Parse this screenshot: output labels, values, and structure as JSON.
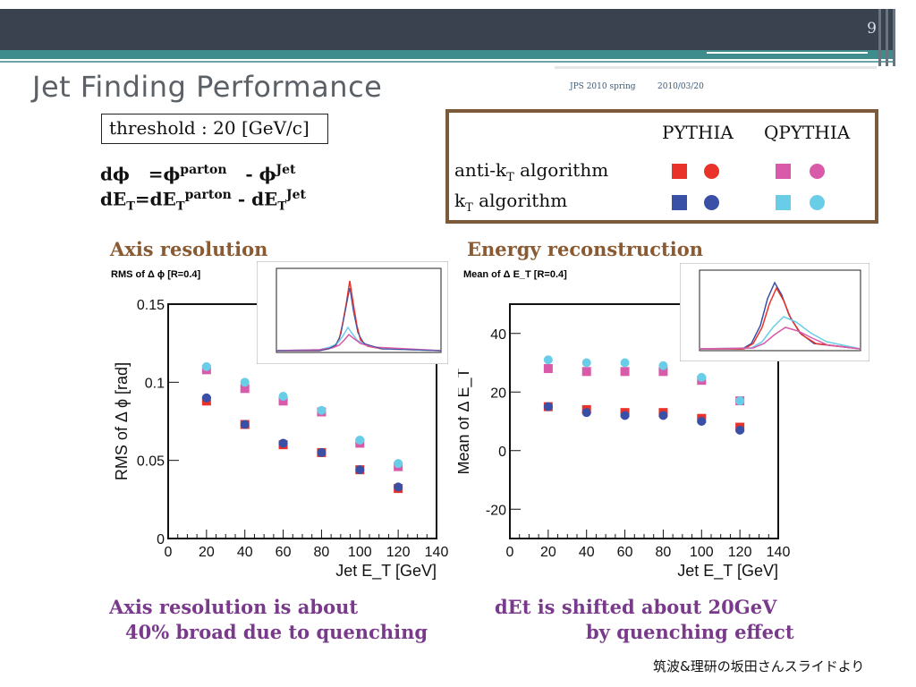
{
  "slide": {
    "page_number": "9",
    "title": "Jet Finding Performance",
    "conference": "JPS 2010 spring",
    "date": "2010/03/20",
    "threshold": "threshold : 20 [GeV/c]",
    "formula1": {
      "lhs": "dϕ",
      "eq": "=ϕ",
      "sup1": "parton",
      "minus": "- ϕ",
      "sup2": "Jet"
    },
    "formula2": {
      "lhs": "dE",
      "lhs_sub": "T",
      "eq": "=dE",
      "eq_sub": "T",
      "sup1": "parton",
      "minus": "- dE",
      "minus_sub": "T",
      "sup2": "Jet"
    },
    "credit": "筑波&理研の坂田さんスライドより"
  },
  "legend": {
    "col1": "PYTHIA",
    "col2": "QPYTHIA",
    "row1": {
      "text": "anti-k",
      "sub": "T",
      "rest": " algorithm"
    },
    "row2": {
      "text": "k",
      "sub": "T",
      "rest": " algorithm"
    },
    "colors": {
      "pythia_antikt": "#e8322a",
      "pythia_kt": "#3a4fa6",
      "qpythia_antikt": "#d85aa8",
      "qpythia_kt": "#6acde8"
    }
  },
  "sections": {
    "left_heading": "Axis resolution",
    "right_heading": "Energy reconstruction",
    "left_conclusion_1": "Axis resolution is about",
    "left_conclusion_2": "40% broad  due to quenching",
    "right_conclusion_1": "dEt is shifted about 20GeV",
    "right_conclusion_2": "by quenching effect"
  },
  "chart_data": [
    {
      "type": "scatter",
      "title": "RMS of Δ ϕ [R=0.4]",
      "xlabel": "Jet E_T [GeV]",
      "ylabel": "RMS of Δ ϕ [rad]",
      "xlim": [
        0,
        140
      ],
      "ylim": [
        0,
        0.15
      ],
      "xticks": [
        "0",
        "20",
        "40",
        "60",
        "80",
        "100",
        "120",
        "140"
      ],
      "yticks": [
        "0",
        "0.05",
        "0.1",
        "0.15"
      ],
      "x": [
        20,
        40,
        60,
        80,
        100,
        120
      ],
      "series": [
        {
          "name": "PYTHIA anti-kT",
          "marker": "square",
          "color": "#e8322a",
          "values": [
            0.088,
            0.073,
            0.06,
            0.055,
            0.044,
            0.032
          ]
        },
        {
          "name": "PYTHIA kT",
          "marker": "circle",
          "color": "#3a4fa6",
          "values": [
            0.09,
            0.073,
            0.061,
            0.055,
            0.044,
            0.033
          ]
        },
        {
          "name": "QPYTHIA anti-kT",
          "marker": "square",
          "color": "#d85aa8",
          "values": [
            0.108,
            0.096,
            0.088,
            0.081,
            0.061,
            0.046
          ]
        },
        {
          "name": "QPYTHIA kT",
          "marker": "circle",
          "color": "#6acde8",
          "values": [
            0.11,
            0.1,
            0.091,
            0.082,
            0.063,
            0.048
          ]
        }
      ]
    },
    {
      "type": "scatter",
      "title": "Mean of Δ E_T [R=0.4]",
      "xlabel": "Jet E_T [GeV]",
      "ylabel": "Mean of Δ E_T",
      "xlim": [
        0,
        140
      ],
      "ylim": [
        -30,
        50
      ],
      "xticks": [
        "0",
        "20",
        "40",
        "60",
        "80",
        "100",
        "120",
        "140"
      ],
      "yticks": [
        "-20",
        "0",
        "20",
        "40"
      ],
      "x": [
        20,
        40,
        60,
        80,
        100,
        120
      ],
      "series": [
        {
          "name": "PYTHIA anti-kT",
          "marker": "square",
          "color": "#e8322a",
          "values": [
            15,
            14,
            13,
            13,
            11,
            8
          ]
        },
        {
          "name": "PYTHIA kT",
          "marker": "circle",
          "color": "#3a4fa6",
          "values": [
            15,
            13,
            12,
            12,
            10,
            7
          ]
        },
        {
          "name": "QPYTHIA anti-kT",
          "marker": "square",
          "color": "#d85aa8",
          "values": [
            28,
            27,
            27,
            27,
            24,
            17
          ]
        },
        {
          "name": "QPYTHIA kT",
          "marker": "circle",
          "color": "#6acde8",
          "values": [
            31,
            30,
            30,
            29,
            25,
            17
          ]
        }
      ]
    }
  ]
}
